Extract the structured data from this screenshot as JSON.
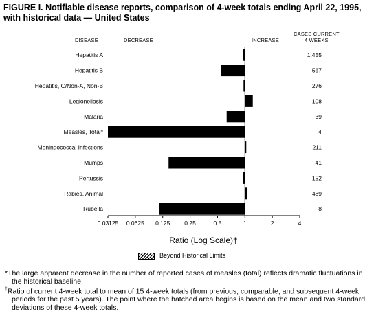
{
  "title": "FIGURE I. Notifiable disease reports, comparison of 4-week totals ending April 22, 1995, with historical data — United States",
  "headers": {
    "disease": "DISEASE",
    "decrease": "DECREASE",
    "increase": "INCREASE",
    "cases_line1": "CASES CURRENT",
    "cases_line2": "4 WEEKS"
  },
  "legend_label": "Beyond Historical Limits",
  "footnotes": {
    "star": "*The large apparent decrease in the number of reported cases of measles (total) reflects dramatic fluctuations in the historical baseline.",
    "dagger_mark": "†",
    "dagger": "Ratio of current 4-week total to mean of 15 4-week totals (from previous, comparable, and subsequent 4-week periods for the past 5 years). The point where the hatched area begins is based on the mean and two standard deviations of these 4-week totals."
  },
  "chart_data": {
    "type": "bar",
    "orientation": "horizontal",
    "xscale": "log2",
    "xlabel": "Ratio (Log Scale)†",
    "xlim": [
      0.03125,
      4
    ],
    "xticks": [
      "0.03125",
      "0.0625",
      "0.125",
      "0.25",
      "0.5",
      "1",
      "2",
      "4"
    ],
    "baseline": 1,
    "categories": [
      "Hepatitis A",
      "Hepatitis B",
      "Hepatitis, C/Non-A, Non-B",
      "Legionellosis",
      "Malaria",
      "Measles, Total*",
      "Meningococcal Infections",
      "Mumps",
      "Pertussis",
      "Rabies, Animal",
      "Rubella"
    ],
    "values": [
      0.95,
      0.55,
      0.99,
      1.22,
      0.63,
      0.03125,
      1.03,
      0.145,
      0.96,
      1.05,
      0.115
    ],
    "cases": [
      "1,455",
      "567",
      "276",
      "108",
      "39",
      "4",
      "211",
      "41",
      "152",
      "489",
      "8"
    ]
  }
}
